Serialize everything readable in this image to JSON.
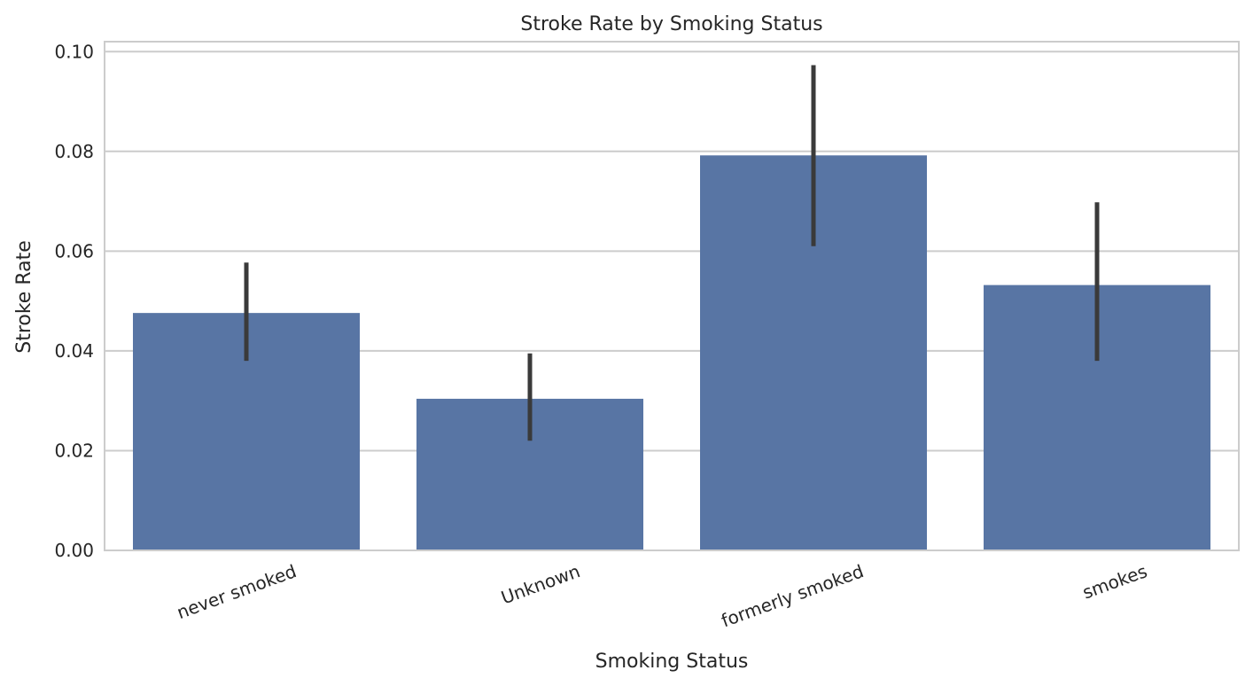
{
  "chart_data": {
    "type": "bar",
    "title": "Stroke Rate by Smoking Status",
    "xlabel": "Smoking Status",
    "ylabel": "Stroke Rate",
    "categories": [
      "never smoked",
      "Unknown",
      "formerly smoked",
      "smokes"
    ],
    "values": [
      0.0476,
      0.0304,
      0.0792,
      0.0532
    ],
    "error_low": [
      0.038,
      0.022,
      0.061,
      0.038
    ],
    "error_high": [
      0.0577,
      0.0395,
      0.0973,
      0.0698
    ],
    "ylim": [
      0,
      0.102
    ],
    "yticks": [
      0.0,
      0.02,
      0.04,
      0.06,
      0.08,
      0.1
    ],
    "ytick_labels": [
      "0.00",
      "0.02",
      "0.04",
      "0.06",
      "0.08",
      "0.10"
    ],
    "grid": "horizontal",
    "colors": {
      "bar": "#5875a4",
      "error": "#3a3a3a",
      "grid": "#cccccc",
      "frame": "#cccccc",
      "text": "#262626"
    }
  }
}
